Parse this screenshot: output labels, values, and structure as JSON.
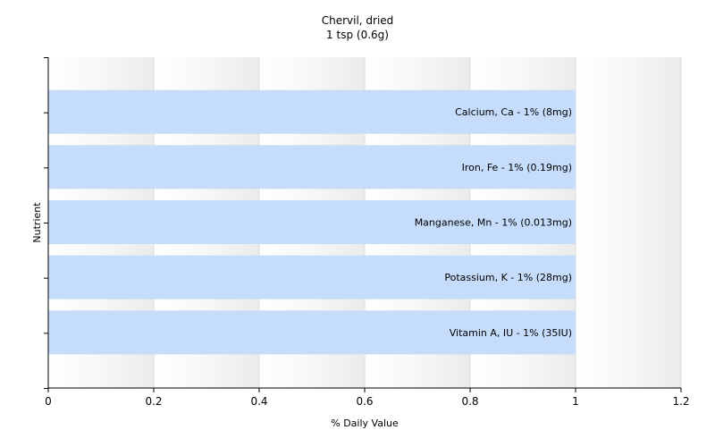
{
  "chart_data": {
    "type": "bar",
    "orientation": "horizontal",
    "title": "Chervil, dried",
    "subtitle": "1 tsp (0.6g)",
    "xlabel": "% Daily Value",
    "ylabel": "Nutrient",
    "xlim": [
      0,
      1.2
    ],
    "xticks": [
      "0",
      "0.2",
      "0.4",
      "0.6",
      "0.8",
      "1",
      "1.2"
    ],
    "grid": "vertical",
    "bar_color": "#c5dcfb",
    "categories": [
      "Calcium, Ca - 1% (8mg)",
      "Iron, Fe - 1% (0.19mg)",
      "Manganese, Mn - 1% (0.013mg)",
      "Potassium, K - 1% (28mg)",
      "Vitamin A, IU - 1% (35IU)"
    ],
    "values": [
      1,
      1,
      1,
      1,
      1
    ]
  }
}
